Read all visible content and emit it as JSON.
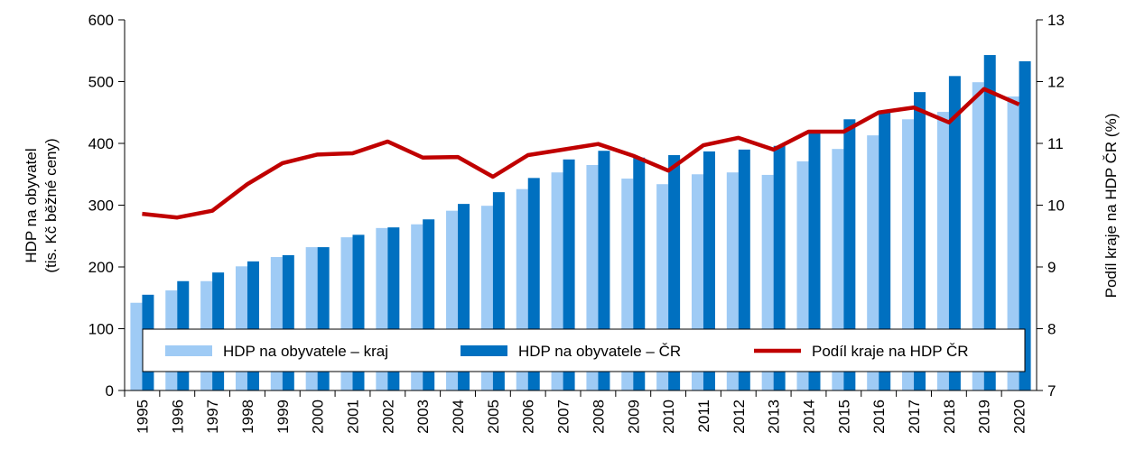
{
  "chart_data": {
    "type": "bar-line",
    "ylabel": [
      "HDP na obyvatel",
      "(tis. Kč běžné ceny)"
    ],
    "y2label": "Podíl kraje na HDP ČR  (%)",
    "categories": [
      "1995",
      "1996",
      "1997",
      "1998",
      "1999",
      "2000",
      "2001",
      "2002",
      "2003",
      "2004",
      "2005",
      "2006",
      "2007",
      "2008",
      "2009",
      "2010",
      "2011",
      "2012",
      "2013",
      "2014",
      "2015",
      "2016",
      "2017",
      "2018",
      "2019",
      "2020"
    ],
    "series": [
      {
        "name": "HDP na obyvatele – kraj",
        "type": "bar",
        "color": "#9fcbf5",
        "values": [
          142,
          162,
          177,
          201,
          216,
          232,
          248,
          263,
          269,
          291,
          299,
          326,
          353,
          365,
          343,
          334,
          350,
          353,
          349,
          371,
          391,
          413,
          439,
          451,
          499,
          476
        ]
      },
      {
        "name": "HDP na obyvatele – ČR",
        "type": "bar",
        "color": "#0070c0",
        "values": [
          155,
          177,
          191,
          209,
          219,
          232,
          252,
          264,
          277,
          302,
          321,
          344,
          374,
          388,
          377,
          381,
          387,
          390,
          396,
          420,
          439,
          451,
          483,
          509,
          543,
          533
        ]
      },
      {
        "name": "Podíl kraje na HDP ČR",
        "type": "line",
        "axis": "y2",
        "color": "#c00000",
        "values": [
          9.86,
          9.8,
          9.91,
          10.34,
          10.68,
          10.82,
          10.84,
          11.03,
          10.77,
          10.78,
          10.46,
          10.81,
          10.9,
          10.99,
          10.8,
          10.56,
          10.97,
          11.09,
          10.9,
          11.19,
          11.19,
          11.5,
          11.58,
          11.34,
          11.88,
          11.63
        ]
      }
    ],
    "ylim": [
      0,
      600
    ],
    "yticks": [
      0,
      100,
      200,
      300,
      400,
      500,
      600
    ],
    "y2lim": [
      7,
      13
    ],
    "y2ticks": [
      7,
      8,
      9,
      10,
      11,
      12,
      13
    ],
    "legend": "bottom"
  }
}
